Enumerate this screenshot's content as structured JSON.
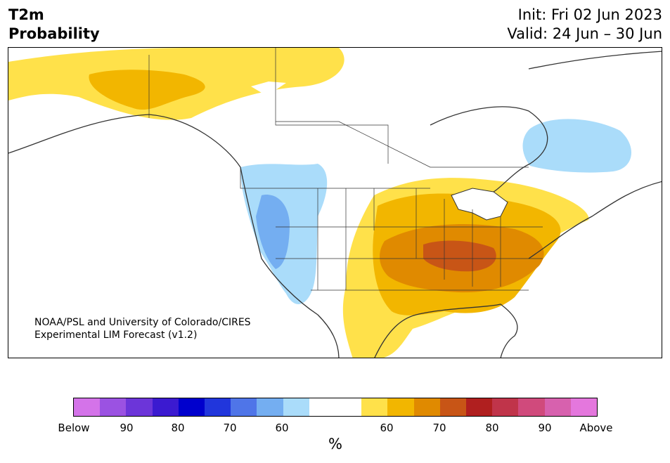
{
  "header": {
    "title_line1": "T2m",
    "title_line2": "Probability",
    "init": "Init: Fri 02 Jun 2023",
    "valid": "Valid: 24 Jun – 30 Jun"
  },
  "credit": {
    "line1": "NOAA/PSL and University of Colorado/CIRES",
    "line2": "Experimental LIM Forecast (v1.2)"
  },
  "colorbar": {
    "unit": "%",
    "colors": [
      "#d473e9",
      "#9b52e2",
      "#6c35d9",
      "#3b1ad0",
      "#0000cd",
      "#2136dc",
      "#4f75e8",
      "#74aef1",
      "#aadcfa",
      "#ffffff",
      "#ffffff",
      "#ffe14a",
      "#f2b600",
      "#e08a00",
      "#c85516",
      "#b01f1f",
      "#c0344a",
      "#d04a7c",
      "#d761ae",
      "#e477dd"
    ],
    "labels": [
      "Below",
      "90",
      "80",
      "70",
      "60",
      "60",
      "70",
      "80",
      "90",
      "Above"
    ]
  }
}
